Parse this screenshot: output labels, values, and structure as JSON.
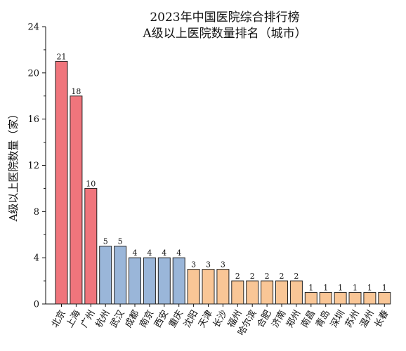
{
  "chart_data": {
    "type": "bar",
    "title_lines": [
      "2023年中国医院综合排行榜",
      "A级以上医院数量排名（城市）"
    ],
    "ylabel": "A级以上医院数量（家）",
    "xlabel": "",
    "ylim": [
      0,
      24
    ],
    "yticks": [
      0,
      4,
      8,
      12,
      16,
      20,
      24
    ],
    "grid": false,
    "categories": [
      "北京",
      "上海",
      "广州",
      "杭州",
      "武汉",
      "成都",
      "南京",
      "西安",
      "重庆",
      "沈阳",
      "天津",
      "长沙",
      "福州",
      "哈尔滨",
      "合肥",
      "济南",
      "郑州",
      "南昌",
      "青岛",
      "深圳",
      "苏州",
      "温州",
      "长春"
    ],
    "values": [
      21,
      18,
      10,
      5,
      5,
      4,
      4,
      4,
      4,
      3,
      3,
      3,
      2,
      2,
      2,
      2,
      2,
      1,
      1,
      1,
      1,
      1,
      1
    ],
    "color_groups": [
      {
        "from": 0,
        "to": 2,
        "color": "#f0757c"
      },
      {
        "from": 3,
        "to": 8,
        "color": "#9ab6d9"
      },
      {
        "from": 9,
        "to": 11,
        "color": "#f9c696"
      },
      {
        "from": 12,
        "to": 22,
        "color": "#f9c696"
      }
    ],
    "stroke_color": "#222222"
  }
}
